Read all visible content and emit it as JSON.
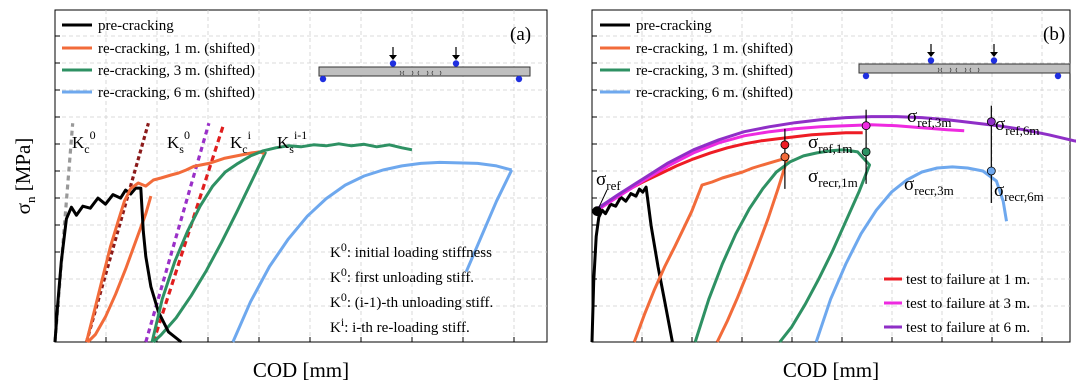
{
  "chart_data": [
    {
      "type": "line",
      "panel_label": "(a)",
      "xlabel": "COD [mm]",
      "ylabel_main": "σ",
      "ylabel_sub": "n",
      "ylabel_unit": " [MPa]",
      "legend_position": "top-left",
      "legend": [
        {
          "name": "pre-cracking",
          "color": "#000000"
        },
        {
          "name": "re-cracking, 1 m. (shifted)",
          "color": "#f26b3a"
        },
        {
          "name": "re-cracking, 3 m. (shifted)",
          "color": "#2e9163"
        },
        {
          "name": "re-cracking, 6 m. (shifted)",
          "color": "#6ea8ee"
        }
      ],
      "stiffness_labels": [
        {
          "main": "K",
          "sub": "c",
          "sup": "0",
          "color": "#999999"
        },
        {
          "main": "K",
          "sub": "s",
          "sup": "0",
          "color": "#8b1a1a"
        },
        {
          "main": "K",
          "sub": "c",
          "sup": "i",
          "color": "#9a30c8"
        },
        {
          "main": "K",
          "sub": "s",
          "sup": "i-1",
          "color": "#e01e1e"
        }
      ],
      "notes": [
        {
          "main": "K",
          "sub": "c",
          "sup": "0",
          "text": ": initial loading stiffness"
        },
        {
          "main": "K",
          "sub": "s",
          "sup": "0",
          "text": ": first unloading stiff."
        },
        {
          "main": "K",
          "sub": "s",
          "sup": "0",
          "text": ": (i-1)-th unloading stiff."
        },
        {
          "main": "K",
          "sub": "c",
          "sup": "i",
          "text": ": i-th re-loading stiff."
        }
      ],
      "series": [
        {
          "name": "pre-cracking",
          "color": "#000000",
          "x": [
            0.0,
            0.02,
            0.05,
            0.09,
            0.13,
            0.17,
            0.22,
            0.28,
            0.34,
            0.4,
            0.46,
            0.52,
            0.56,
            0.6,
            0.64,
            0.68,
            0.7,
            0.72,
            0.76,
            0.82,
            0.9,
            1.0
          ],
          "y": [
            0.0,
            0.7,
            1.6,
            2.45,
            2.68,
            2.52,
            2.7,
            2.66,
            2.86,
            2.74,
            2.93,
            2.86,
            3.02,
            2.94,
            3.06,
            3.06,
            2.2,
            1.7,
            1.1,
            0.6,
            0.2,
            0.0
          ]
        },
        {
          "name": "re-cracking, 1 m. (shifted)",
          "color": "#f26b3a",
          "x": [
            0.25,
            0.32,
            0.38,
            0.44,
            0.5,
            0.55,
            0.6,
            0.66,
            0.72,
            0.78,
            0.84,
            0.92,
            0.98,
            1.04,
            1.1,
            1.16,
            1.22,
            1.28,
            1.34,
            1.4,
            1.48,
            1.56,
            1.62,
            1.66
          ],
          "y": [
            0.0,
            0.7,
            1.3,
            1.9,
            2.4,
            2.8,
            3.05,
            3.16,
            3.1,
            3.22,
            3.26,
            3.32,
            3.36,
            3.42,
            3.49,
            3.52,
            3.55,
            3.6,
            3.65,
            3.68,
            3.72,
            3.76,
            3.78,
            3.75
          ]
        },
        {
          "name": "re-cracking, 3 m. (shifted)",
          "color": "#2e9163",
          "x": [
            0.77,
            0.85,
            0.95,
            1.05,
            1.15,
            1.25,
            1.35,
            1.45,
            1.55,
            1.65,
            1.75,
            1.85,
            1.95,
            2.05,
            2.15,
            2.25,
            2.35,
            2.45,
            2.55,
            2.65,
            2.75,
            2.83
          ],
          "y": [
            0.0,
            0.85,
            1.6,
            2.2,
            2.7,
            3.1,
            3.38,
            3.55,
            3.7,
            3.8,
            3.86,
            3.9,
            3.88,
            3.92,
            3.9,
            3.94,
            3.9,
            3.93,
            3.88,
            3.92,
            3.86,
            3.82
          ]
        },
        {
          "name": "re-cracking, 6 m. (shifted)",
          "color": "#6ea8ee",
          "x": [
            1.41,
            1.55,
            1.7,
            1.85,
            2.0,
            2.15,
            2.3,
            2.45,
            2.6,
            2.75,
            2.9,
            3.05,
            3.2,
            3.35,
            3.5,
            3.62
          ],
          "y": [
            0.0,
            0.8,
            1.5,
            2.05,
            2.5,
            2.85,
            3.12,
            3.3,
            3.42,
            3.5,
            3.55,
            3.57,
            3.56,
            3.55,
            3.5,
            3.42
          ]
        }
      ],
      "unloading_reloading_branches": [
        {
          "name": "re-cracking, 1 m. (shifted)",
          "color": "#f26b3a",
          "x": [
            0.76,
            0.72,
            0.64,
            0.56,
            0.48,
            0.4,
            0.32,
            0.26
          ],
          "y": [
            2.9,
            2.55,
            2.0,
            1.45,
            0.95,
            0.5,
            0.15,
            0.0
          ]
        },
        {
          "name": "re-cracking, 3 m. (shifted)",
          "color": "#2e9163",
          "x": [
            1.67,
            1.56,
            1.44,
            1.32,
            1.2,
            1.08,
            0.96,
            0.84,
            0.78
          ],
          "y": [
            3.78,
            3.2,
            2.58,
            1.98,
            1.42,
            0.92,
            0.48,
            0.14,
            0.0
          ]
        },
        {
          "name": "re-cracking, 6 m. (shifted)",
          "color": "#6ea8ee",
          "x": [
            3.62,
            3.5,
            3.38,
            3.26
          ],
          "y": [
            3.42,
            2.8,
            2.1,
            1.4
          ]
        }
      ],
      "stiffness_lines": [
        {
          "name": "K_c^0",
          "color": "#999999",
          "x": [
            0.0,
            0.14
          ],
          "y": [
            0.0,
            4.35
          ]
        },
        {
          "name": "K_s^0",
          "color": "#8b1a1a",
          "x": [
            0.25,
            0.74
          ],
          "y": [
            0.0,
            4.35
          ]
        },
        {
          "name": "K_c^i",
          "color": "#9a30c8",
          "x": [
            0.72,
            1.22
          ],
          "y": [
            0.0,
            4.35
          ]
        },
        {
          "name": "K_s^i-1",
          "color": "#e01e1e",
          "x": [
            0.78,
            1.34
          ],
          "y": [
            0.0,
            4.35
          ]
        }
      ],
      "xlim": [
        0.0,
        3.9
      ],
      "ylim": [
        0.0,
        6.6
      ]
    },
    {
      "type": "line",
      "panel_label": "(b)",
      "xlabel": "COD [mm]",
      "legend_position": "top-left",
      "legend": [
        {
          "name": "pre-cracking",
          "color": "#000000"
        },
        {
          "name": "re-cracking, 1 m. (shifted)",
          "color": "#f26b3a"
        },
        {
          "name": "re-cracking, 3 m. (shifted)",
          "color": "#2e9163"
        },
        {
          "name": "re-cracking, 6 m. (shifted)",
          "color": "#6ea8ee"
        }
      ],
      "legend2_position": "bottom-right",
      "legend2": [
        {
          "name": "test to failure at 1 m.",
          "color": "#ee1c25"
        },
        {
          "name": "test to failure at 3 m.",
          "color": "#ee2ae0"
        },
        {
          "name": "test to failure at 6 m.",
          "color": "#8f2fc7"
        }
      ],
      "sigma_labels": [
        {
          "main": "σ",
          "sub": "ref"
        },
        {
          "main": "σ",
          "sub": "ref,1m"
        },
        {
          "main": "σ",
          "sub": "recr,1m"
        },
        {
          "main": "σ",
          "sub": "ref,3m"
        },
        {
          "main": "σ",
          "sub": "recr,3m"
        },
        {
          "main": "σ",
          "sub": "ref,6m"
        },
        {
          "main": "σ",
          "sub": "recr,6m"
        }
      ],
      "series": [
        {
          "name": "pre-cracking",
          "color": "#000000",
          "x": [
            0.0,
            0.02,
            0.05,
            0.08,
            0.12,
            0.16,
            0.22,
            0.28,
            0.34,
            0.4,
            0.46,
            0.52,
            0.56,
            0.6,
            0.64,
            0.7,
            0.78,
            0.86,
            0.95
          ],
          "y": [
            0.0,
            1.2,
            2.1,
            2.48,
            2.62,
            2.55,
            2.74,
            2.7,
            2.88,
            2.8,
            2.95,
            2.9,
            3.04,
            2.98,
            3.08,
            2.3,
            1.5,
            0.8,
            0.0
          ]
        },
        {
          "name": "re-cracking, 1 m. (shifted)",
          "color": "#f26b3a",
          "x": [
            0.5,
            0.62,
            0.74,
            0.86,
            0.98,
            1.08,
            1.18,
            1.3,
            1.42,
            1.54,
            1.66,
            1.78,
            1.9,
            2.02,
            2.14,
            2.26,
            2.32,
            2.2,
            2.08,
            1.96,
            1.84,
            1.72,
            1.6,
            1.48
          ],
          "y": [
            0.0,
            0.55,
            1.05,
            1.5,
            1.9,
            2.25,
            2.6,
            3.12,
            3.18,
            3.26,
            3.32,
            3.38,
            3.46,
            3.52,
            3.58,
            3.64,
            3.7,
            3.05,
            2.45,
            1.9,
            1.38,
            0.88,
            0.42,
            0.0
          ]
        },
        {
          "name": "re-cracking, 3 m. (shifted)",
          "color": "#2e9163",
          "x": [
            1.22,
            1.38,
            1.54,
            1.7,
            1.86,
            2.02,
            2.18,
            2.34,
            2.5,
            2.66,
            2.82,
            2.98,
            3.14,
            3.28,
            3.16,
            3.0,
            2.84,
            2.68,
            2.52,
            2.36,
            2.22
          ],
          "y": [
            0.0,
            0.85,
            1.55,
            2.15,
            2.65,
            3.05,
            3.38,
            3.58,
            3.7,
            3.76,
            3.8,
            3.82,
            3.78,
            3.52,
            3.0,
            2.4,
            1.8,
            1.25,
            0.75,
            0.3,
            0.0
          ]
        },
        {
          "name": "re-cracking, 6 m. (shifted)",
          "color": "#6ea8ee",
          "x": [
            2.65,
            2.82,
            3.0,
            3.18,
            3.36,
            3.54,
            3.72,
            3.9,
            4.08,
            4.26,
            4.44,
            4.62,
            4.78,
            4.86,
            4.9
          ],
          "y": [
            0.0,
            0.85,
            1.55,
            2.15,
            2.62,
            2.98,
            3.22,
            3.38,
            3.46,
            3.48,
            3.46,
            3.4,
            3.2,
            2.8,
            2.4
          ]
        },
        {
          "name": "test to failure at 1 m.",
          "color": "#ee1c25",
          "x": [
            0.06,
            0.2,
            0.4,
            0.6,
            0.8,
            1.0,
            1.2,
            1.4,
            1.6,
            1.8,
            2.0,
            2.2,
            2.4,
            2.6,
            2.8,
            3.0,
            3.2
          ],
          "y": [
            2.6,
            2.8,
            3.0,
            3.18,
            3.34,
            3.5,
            3.64,
            3.76,
            3.86,
            3.94,
            4.0,
            4.04,
            4.08,
            4.12,
            4.14,
            4.16,
            4.16
          ]
        },
        {
          "name": "test to failure at 3 m.",
          "color": "#ee2ae0",
          "x": [
            0.06,
            0.3,
            0.6,
            0.9,
            1.2,
            1.5,
            1.8,
            2.1,
            2.4,
            2.7,
            3.0,
            3.3,
            3.6,
            3.9,
            4.2,
            4.4
          ],
          "y": [
            2.62,
            2.88,
            3.2,
            3.5,
            3.76,
            3.96,
            4.1,
            4.18,
            4.24,
            4.28,
            4.3,
            4.32,
            4.3,
            4.26,
            4.22,
            4.2
          ]
        },
        {
          "name": "test to failure at 6 m.",
          "color": "#8f2fc7",
          "x": [
            0.06,
            0.3,
            0.6,
            0.9,
            1.2,
            1.5,
            1.8,
            2.1,
            2.4,
            2.7,
            3.0,
            3.3,
            3.6,
            3.9,
            4.2,
            4.5,
            4.8,
            5.1,
            5.4,
            5.7,
            5.9
          ],
          "y": [
            2.65,
            2.92,
            3.24,
            3.56,
            3.82,
            4.02,
            4.18,
            4.28,
            4.36,
            4.42,
            4.46,
            4.48,
            4.48,
            4.46,
            4.42,
            4.36,
            4.3,
            4.22,
            4.12,
            4.0,
            3.95
          ]
        }
      ],
      "reference_points": [
        {
          "name": "σ_ref",
          "x": 0.06,
          "y": 2.6,
          "color": "#000000"
        },
        {
          "name": "σ_ref,1m",
          "x": 2.28,
          "y": 3.92,
          "color": "#ee1c25"
        },
        {
          "name": "σ_recr,1m",
          "x": 2.28,
          "y": 3.68,
          "color": "#f26b3a"
        },
        {
          "name": "σ_ref,3m",
          "x": 3.24,
          "y": 4.3,
          "color": "#ee2ae0"
        },
        {
          "name": "σ_recr,3m",
          "x": 3.24,
          "y": 3.78,
          "color": "#2e9163"
        },
        {
          "name": "σ_ref,6m",
          "x": 4.72,
          "y": 4.38,
          "color": "#8f2fc7"
        },
        {
          "name": "σ_recr,6m",
          "x": 4.72,
          "y": 3.4,
          "color": "#6ea8ee"
        }
      ],
      "xlim": [
        0.0,
        5.65
      ],
      "ylim": [
        0.0,
        6.6
      ]
    }
  ]
}
